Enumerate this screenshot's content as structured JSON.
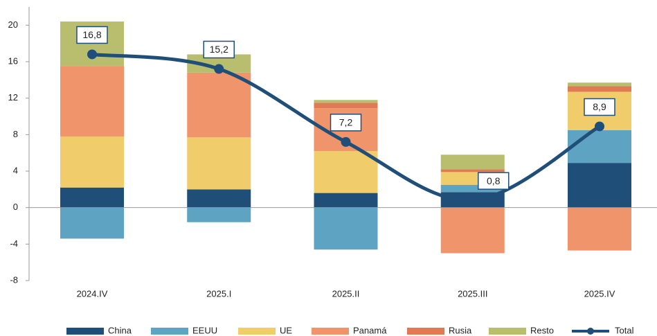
{
  "chart_data": {
    "type": "stacked_bar_line",
    "categories": [
      "2024.IV",
      "2025.I",
      "2025.II",
      "2025.III",
      "2025.IV"
    ],
    "series": [
      {
        "name": "China",
        "color": "#1f4e79",
        "values": [
          2.2,
          2.0,
          1.6,
          1.7,
          4.9
        ]
      },
      {
        "name": "EEUU",
        "color": "#5fa3c2",
        "values": [
          -3.4,
          -1.6,
          -4.6,
          0.8,
          3.6
        ]
      },
      {
        "name": "UE",
        "color": "#f0cc6a",
        "values": [
          5.6,
          5.7,
          4.6,
          1.4,
          4.2
        ]
      },
      {
        "name": "Panamá",
        "color": "#f0956b",
        "values": [
          7.7,
          7.1,
          4.7,
          -5.0,
          -4.7
        ]
      },
      {
        "name": "Rusia",
        "color": "#e07a55",
        "values": [
          0,
          0,
          0.6,
          0.3,
          0.6
        ]
      },
      {
        "name": "Resto",
        "color": "#b9bd6e",
        "values": [
          4.9,
          2.0,
          0.3,
          1.6,
          0.4
        ]
      }
    ],
    "line": {
      "name": "Total",
      "color": "#1f4e79",
      "values": [
        16.8,
        15.2,
        7.2,
        0.8,
        8.9
      ],
      "value_labels": [
        "16,8",
        "15,2",
        "7,2",
        "0,8",
        "8,9"
      ]
    },
    "ylim": [
      -8,
      22
    ],
    "yticks": [
      -8,
      -4,
      0,
      4,
      8,
      12,
      16,
      20
    ]
  }
}
